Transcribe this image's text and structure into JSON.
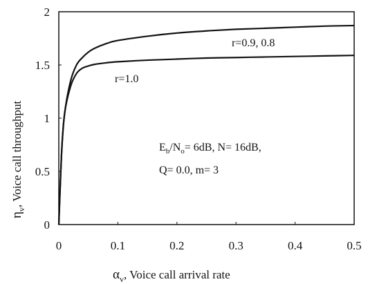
{
  "chart_data": {
    "type": "line",
    "title": "",
    "xlabel": {
      "symbol": "α",
      "sub": "v",
      "text": ", Voice call arrival rate"
    },
    "ylabel": {
      "symbol": "η",
      "sub": "v",
      "text": ", Voice call throughput"
    },
    "xlim": [
      0,
      0.5
    ],
    "ylim": [
      0,
      2
    ],
    "xticks": [
      "0",
      "0.1",
      "0.2",
      "0.3",
      "0.4",
      "0.5"
    ],
    "yticks": [
      "0",
      "0.5",
      "1",
      "1.5",
      "2"
    ],
    "grid": false,
    "series": [
      {
        "name": "r=0.9, 0.8",
        "x": [
          0,
          0.005,
          0.01,
          0.02,
          0.03,
          0.04,
          0.05,
          0.06,
          0.08,
          0.1,
          0.15,
          0.2,
          0.25,
          0.3,
          0.35,
          0.4,
          0.45,
          0.5
        ],
        "y": [
          0,
          0.7,
          1.05,
          1.35,
          1.5,
          1.57,
          1.62,
          1.655,
          1.7,
          1.73,
          1.77,
          1.8,
          1.82,
          1.835,
          1.845,
          1.855,
          1.865,
          1.87
        ]
      },
      {
        "name": "r=1.0",
        "x": [
          0,
          0.005,
          0.01,
          0.02,
          0.03,
          0.04,
          0.05,
          0.06,
          0.08,
          0.1,
          0.15,
          0.2,
          0.25,
          0.3,
          0.35,
          0.4,
          0.45,
          0.5
        ],
        "y": [
          0,
          0.7,
          1.05,
          1.3,
          1.42,
          1.47,
          1.49,
          1.505,
          1.52,
          1.53,
          1.545,
          1.555,
          1.565,
          1.57,
          1.575,
          1.58,
          1.585,
          1.59
        ]
      }
    ],
    "annotations": {
      "series_label_top": "r=0.9, 0.8",
      "series_label_bottom": "r=1.0",
      "params_line1": {
        "E": "E",
        "b": "b",
        "slash": "/N",
        "o": "o",
        "rest": "= 6dB, N= 16dB,"
      },
      "params_line2": "Q= 0.0, m= 3"
    }
  }
}
